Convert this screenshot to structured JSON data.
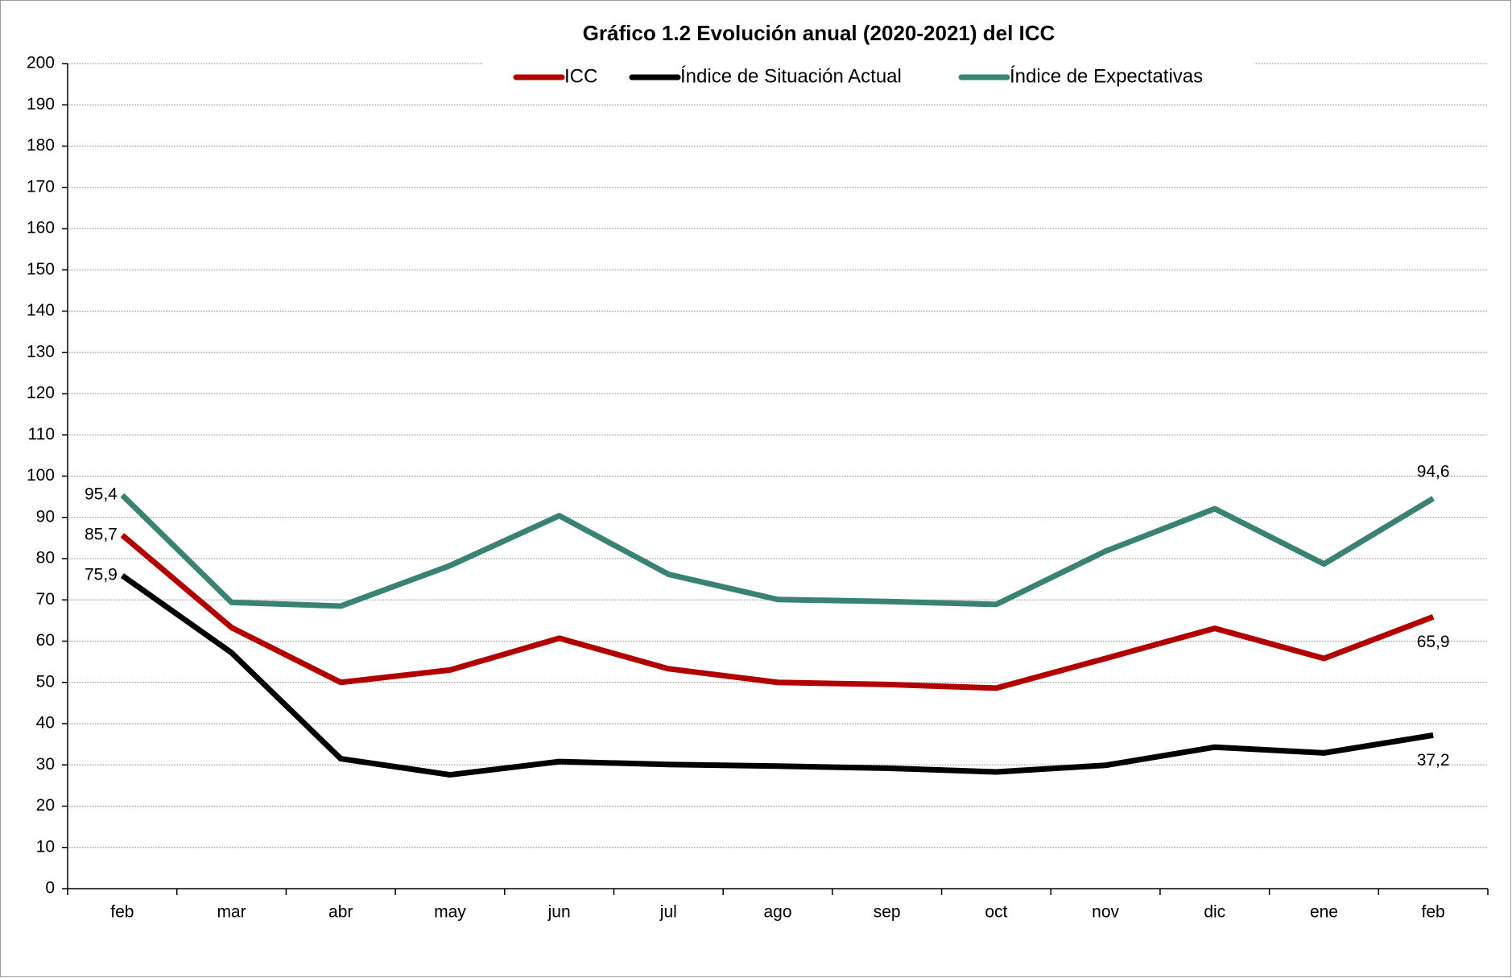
{
  "chart_data": {
    "type": "line",
    "title": "Gráfico 1.2 Evolución anual (2020-2021) del ICC",
    "categories": [
      "feb",
      "mar",
      "abr",
      "may",
      "jun",
      "jul",
      "ago",
      "sep",
      "oct",
      "nov",
      "dic",
      "ene",
      "feb"
    ],
    "series": [
      {
        "name": "ICC",
        "color": "#b20000",
        "values": [
          85.7,
          63.3,
          50.0,
          53.0,
          60.7,
          53.3,
          50.0,
          49.5,
          48.6,
          55.8,
          63.1,
          55.8,
          65.9
        ],
        "value_labels": [
          "85,7",
          null,
          null,
          null,
          null,
          null,
          null,
          null,
          null,
          null,
          null,
          null,
          "65,9"
        ]
      },
      {
        "name": "Índice de Situación Actual",
        "color": "#000000",
        "values": [
          75.9,
          57.2,
          31.5,
          27.6,
          30.8,
          30.1,
          29.7,
          29.2,
          28.3,
          29.9,
          34.3,
          32.9,
          37.2
        ],
        "value_labels": [
          "75,9",
          null,
          null,
          null,
          null,
          null,
          null,
          null,
          null,
          null,
          null,
          null,
          "37,2"
        ]
      },
      {
        "name": "Índice de Expectativas",
        "color": "#3a8274",
        "values": [
          95.4,
          69.4,
          68.5,
          78.3,
          90.4,
          76.2,
          70.1,
          69.6,
          68.9,
          81.8,
          92.1,
          78.7,
          94.6
        ],
        "value_labels": [
          "95,4",
          null,
          null,
          null,
          null,
          null,
          null,
          null,
          null,
          null,
          null,
          null,
          "94,6"
        ]
      }
    ],
    "ylim": [
      0,
      200
    ],
    "yticks": [
      0,
      10,
      20,
      30,
      40,
      50,
      60,
      70,
      80,
      90,
      100,
      110,
      120,
      130,
      140,
      150,
      160,
      170,
      180,
      190,
      200
    ],
    "grid": true,
    "legend": "top"
  }
}
